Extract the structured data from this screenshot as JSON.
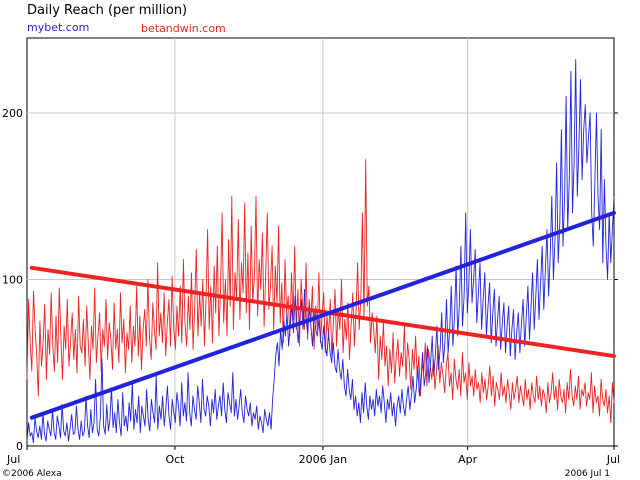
{
  "chart_data": {
    "type": "line",
    "title": "Daily Reach (per million)",
    "ylabel": "",
    "xlabel": "",
    "ylim": [
      0,
      245
    ],
    "xlim": [
      0,
      365
    ],
    "y_ticks": [
      0,
      100,
      200
    ],
    "x_ticks": [
      {
        "label": "Jul",
        "day": 0
      },
      {
        "label": "Oct",
        "day": 92
      },
      {
        "label": "2006 Jan",
        "day": 184
      },
      {
        "label": "Apr",
        "day": 274
      },
      {
        "label": "Jul",
        "day": 365
      }
    ],
    "grid": true,
    "legend_placement": "top-left",
    "series": [
      {
        "name": "mybet.com",
        "color": "#2222dd",
        "trend": {
          "start": 17,
          "end": 140
        },
        "values": [
          3,
          14,
          6,
          8,
          2,
          17,
          9,
          5,
          12,
          4,
          20,
          7,
          3,
          15,
          10,
          6,
          22,
          8,
          4,
          18,
          12,
          5,
          25,
          9,
          6,
          14,
          3,
          11,
          19,
          7,
          8,
          24,
          10,
          4,
          15,
          6,
          9,
          30,
          12,
          5,
          22,
          8,
          14,
          40,
          10,
          6,
          18,
          52,
          12,
          7,
          25,
          9,
          16,
          35,
          11,
          20,
          8,
          28,
          14,
          6,
          32,
          12,
          18,
          9,
          26,
          15,
          38,
          10,
          22,
          14,
          30,
          8,
          24,
          18,
          12,
          34,
          16,
          9,
          28,
          20,
          14,
          42,
          10,
          24,
          16,
          30,
          12,
          22,
          36,
          18,
          10,
          28,
          20,
          14,
          32,
          24,
          12,
          38,
          18,
          26,
          15,
          44,
          20,
          12,
          30,
          22,
          16,
          36,
          26,
          14,
          40,
          22,
          18,
          30,
          24,
          12,
          28,
          20,
          34,
          16,
          24,
          30,
          18,
          38,
          22,
          14,
          32,
          26,
          20,
          44,
          18,
          28,
          16,
          24,
          34,
          20,
          14,
          30,
          22,
          18,
          26,
          12,
          20,
          16,
          24,
          10,
          18,
          14,
          8,
          22,
          16,
          12,
          20,
          10,
          28,
          40,
          55,
          62,
          48,
          70,
          58,
          75,
          66,
          80,
          60,
          72,
          85,
          68,
          90,
          74,
          62,
          78,
          88,
          70,
          94,
          76,
          68,
          84,
          72,
          60,
          80,
          70,
          66,
          76,
          64,
          58,
          72,
          60,
          54,
          68,
          56,
          50,
          62,
          48,
          44,
          58,
          46,
          40,
          52,
          36,
          30,
          46,
          34,
          28,
          40,
          22,
          30,
          18,
          26,
          14,
          32,
          20,
          38,
          24,
          16,
          30,
          22,
          28,
          18,
          34,
          24,
          30,
          20,
          36,
          26,
          14,
          28,
          22,
          32,
          18,
          26,
          12,
          24,
          30,
          20,
          34,
          24,
          18,
          28,
          36,
          22,
          30,
          42,
          26,
          34,
          48,
          30,
          40,
          56,
          36,
          44,
          60,
          38,
          50,
          66,
          42,
          54,
          72,
          46,
          58,
          80,
          50,
          62,
          88,
          56,
          70,
          96,
          60,
          78,
          108,
          66,
          84,
          120,
          72,
          90,
          140,
          80,
          96,
          130,
          86,
          100,
          118,
          74,
          92,
          110,
          70,
          88,
          104,
          66,
          84,
          98,
          62,
          80,
          94,
          60,
          76,
          90,
          58,
          74,
          86,
          56,
          72,
          84,
          54,
          70,
          82,
          52,
          68,
          80,
          56,
          74,
          88,
          60,
          78,
          96,
          64,
          84,
          104,
          70,
          90,
          112,
          76,
          98,
          120,
          82,
          106,
          130,
          90,
          114,
          150,
          100,
          124,
          170,
          110,
          134,
          190,
          120,
          150,
          210,
          130,
          160,
          225,
          140,
          170,
          232,
          150,
          180,
          220,
          160,
          190,
          205,
          170,
          185,
          200,
          140,
          120,
          160,
          200,
          150,
          130,
          190,
          110,
          160,
          120,
          100,
          140,
          110,
          130,
          150
        ]
      },
      {
        "name": "betandwin.com",
        "color": "#ee2222",
        "trend": {
          "start": 107,
          "end": 54
        },
        "values": [
          40,
          88,
          62,
          45,
          93,
          70,
          55,
          30,
          75,
          48,
          62,
          85,
          40,
          70,
          55,
          92,
          60,
          45,
          78,
          50,
          95,
          65,
          40,
          72,
          58,
          88,
          48,
          62,
          80,
          52,
          70,
          44,
          90,
          60,
          56,
          76,
          48,
          84,
          62,
          40,
          72,
          58,
          95,
          50,
          66,
          80,
          45,
          70,
          60,
          88,
          52,
          74,
          64,
          46,
          86,
          58,
          70,
          50,
          92,
          62,
          76,
          44,
          68,
          58,
          84,
          50,
          72,
          60,
          96,
          54,
          78,
          46,
          70,
          82,
          60,
          100,
          64,
          52,
          86,
          70,
          58,
          110,
          66,
          80,
          62,
          92,
          54,
          74,
          88,
          60,
          102,
          70,
          58,
          84,
          66,
          96,
          62,
          112,
          74,
          60,
          90,
          70,
          104,
          58,
          84,
          118,
          66,
          92,
          72,
          100,
          60,
          88,
          130,
          70,
          96,
          62,
          108,
          80,
          120,
          66,
          94,
          140,
          74,
          100,
          66,
          124,
          84,
          150,
          70,
          104,
          88,
          136,
          76,
          110,
          92,
          146,
          80,
          116,
          70,
          132,
          86,
          102,
          150,
          78,
          112,
          94,
          128,
          72,
          104,
          140,
          82,
          96,
          120,
          70,
          108,
          86,
          132,
          74,
          98,
          62,
          112,
          80,
          90,
          66,
          104,
          76,
          120,
          70,
          94,
          60,
          100,
          82,
          70,
          110,
          64,
          88,
          74,
          96,
          58,
          84,
          70,
          104,
          62,
          80,
          92,
          56,
          78,
          66,
          88,
          54,
          74,
          94,
          60,
          82,
          70,
          100,
          56,
          76,
          64,
          86,
          52,
          72,
          92,
          60,
          80,
          110,
          70,
          88,
          140,
          76,
          172,
          84,
          96,
          62,
          80,
          70,
          56,
          78,
          40,
          66,
          52,
          74,
          48,
          60,
          36,
          58,
          44,
          68,
          38,
          54,
          64,
          42,
          56,
          48,
          72,
          40,
          62,
          52,
          34,
          58,
          46,
          66,
          40,
          54,
          30,
          50,
          44,
          62,
          36,
          58,
          48,
          40,
          52,
          34,
          46,
          60,
          38,
          50,
          42,
          32,
          48,
          56,
          36,
          44,
          28,
          52,
          40,
          34,
          46,
          30,
          56,
          38,
          44,
          28,
          50,
          36,
          42,
          30,
          46,
          34,
          38,
          26,
          44,
          32,
          40,
          28,
          36,
          48,
          30,
          42,
          24,
          38,
          34,
          28,
          44,
          30,
          36,
          26,
          40,
          32,
          22,
          38,
          28,
          34,
          42,
          26,
          36,
          30,
          24,
          40,
          28,
          34,
          22,
          38,
          30,
          26,
          42,
          28,
          36,
          24,
          34,
          30,
          20,
          38,
          26,
          32,
          44,
          28,
          36,
          22,
          40,
          30,
          26,
          34,
          20,
          38,
          28,
          46,
          30,
          24,
          36,
          28,
          42,
          22,
          34,
          30,
          38,
          24,
          32,
          28,
          44,
          20,
          36,
          26,
          30,
          18,
          40,
          28,
          24,
          34,
          20,
          30,
          14,
          38,
          26
        ]
      }
    ]
  },
  "footer": {
    "left": "©2006 Alexa",
    "right": "2006 Jul 1"
  }
}
